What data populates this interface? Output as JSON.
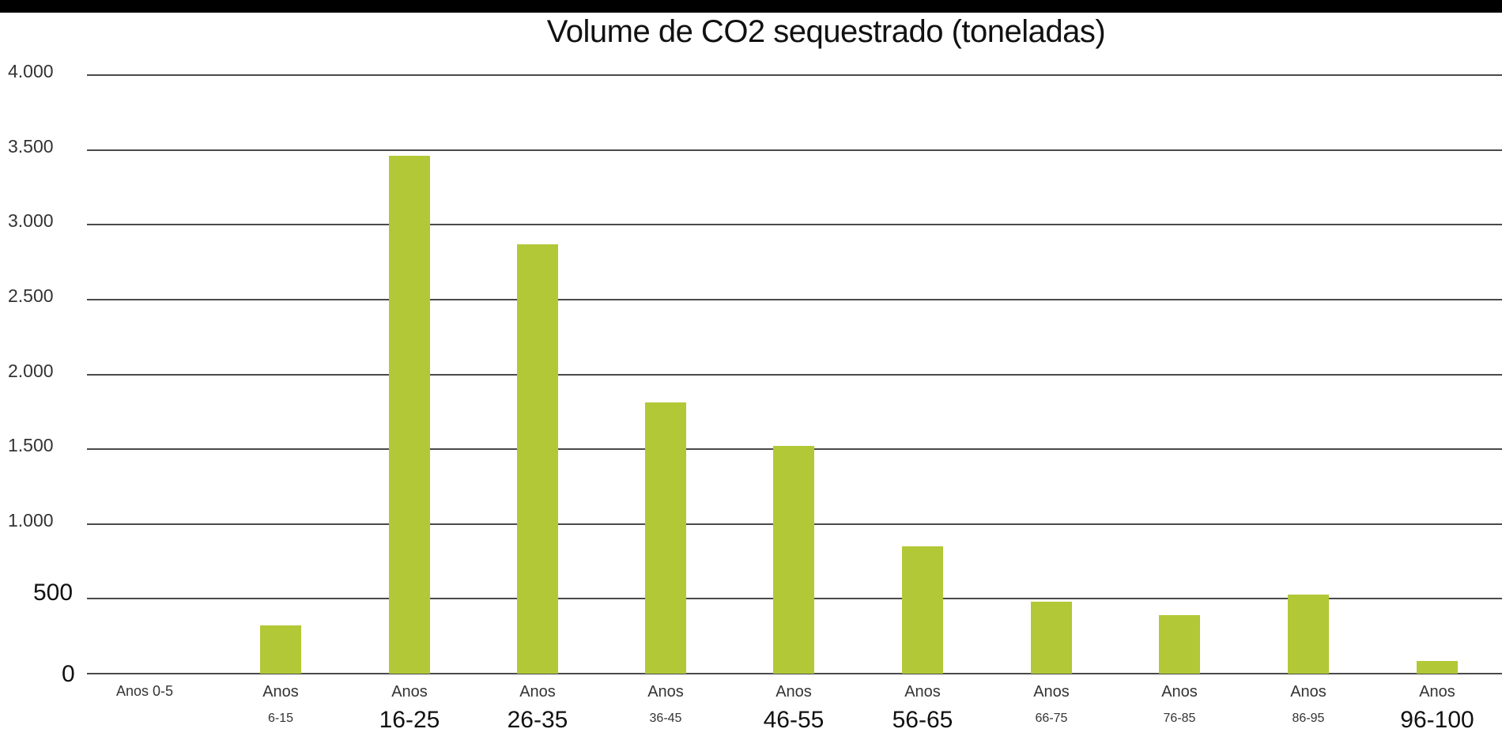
{
  "page": {
    "title": "Volume de CO2 sequestrado (toneladas)"
  },
  "y_ticks": [
    "4.000",
    "3.500",
    "3.000",
    "2.500",
    "2.000",
    "1.500",
    "1.000",
    "500",
    "0"
  ],
  "x_labels": [
    {
      "l1": "Anos 0-5",
      "l2": ""
    },
    {
      "l1": "Anos",
      "l2": "6-15"
    },
    {
      "l1": "Anos",
      "l2": "16-25"
    },
    {
      "l1": "Anos",
      "l2": "26-35"
    },
    {
      "l1": "Anos",
      "l2": "36-45"
    },
    {
      "l1": "Anos",
      "l2": "46-55"
    },
    {
      "l1": "Anos",
      "l2": "56-65"
    },
    {
      "l1": "Anos",
      "l2": "66-75"
    },
    {
      "l1": "Anos",
      "l2": "76-85"
    },
    {
      "l1": "Anos",
      "l2": "86-95"
    },
    {
      "l1": "Anos",
      "l2": "96-100"
    }
  ],
  "colors": {
    "bar": "#b2c836",
    "gridline": "#4a4a4a",
    "top_band": "#000000"
  },
  "chart_data": {
    "type": "bar",
    "title": "Volume de CO2 sequestrado (toneladas)",
    "xlabel": "",
    "ylabel": "",
    "categories": [
      "Anos 0-5",
      "Anos 6-15",
      "Anos 16-25",
      "Anos 26-35",
      "Anos 36-45",
      "Anos 46-55",
      "Anos 56-65",
      "Anos 66-75",
      "Anos 76-85",
      "Anos 86-95",
      "Anos 96-100"
    ],
    "values": [
      0,
      320,
      3460,
      2870,
      1810,
      1520,
      850,
      480,
      390,
      530,
      85
    ],
    "ylim": [
      0,
      4000
    ],
    "yticks": [
      0,
      500,
      1000,
      1500,
      2000,
      2500,
      3000,
      3500,
      4000
    ],
    "grid": true,
    "legend": null
  }
}
